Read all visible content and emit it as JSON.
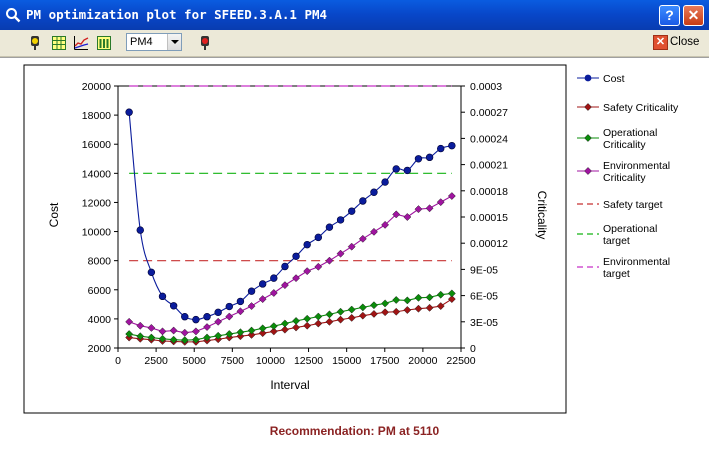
{
  "window": {
    "title": "PM optimization plot for SFEED.3.A.1 PM4",
    "help_label": "?",
    "close_glyph": "✕"
  },
  "toolbar": {
    "icons": [
      "traffic-light-yellow-icon",
      "grid-table-icon",
      "line-chart-icon",
      "bar-table-icon",
      "traffic-light-red-icon"
    ],
    "select_value": "PM4",
    "close_label": "Close"
  },
  "recommendation": "Recommendation: PM at 5110",
  "chart_data": {
    "type": "line",
    "xlabel": "Interval",
    "ylabel": "Cost",
    "y2label": "Criticality",
    "xlim": [
      0,
      22500
    ],
    "ylim": [
      2000,
      20000
    ],
    "y2lim": [
      0,
      0.0003
    ],
    "xticks": [
      "0",
      "2500",
      "5000",
      "7500",
      "10000",
      "12500",
      "15000",
      "17500",
      "20000",
      "22500"
    ],
    "yticks": [
      "2000",
      "4000",
      "6000",
      "8000",
      "10000",
      "12000",
      "14000",
      "16000",
      "18000",
      "20000"
    ],
    "y2ticks": [
      "0",
      "3E-05",
      "6E-05",
      "9E-05",
      "0.00012",
      "0.00015",
      "0.00018",
      "0.00021",
      "0.00024",
      "0.00027",
      "0.0003"
    ],
    "legend_position": "right",
    "x": [
      730,
      1460,
      2190,
      2920,
      3650,
      4380,
      5110,
      5840,
      6570,
      7300,
      8030,
      8760,
      9490,
      10220,
      10950,
      11680,
      12410,
      13140,
      13870,
      14600,
      15330,
      16060,
      16790,
      17520,
      18250,
      18980,
      19710,
      20440,
      21170,
      21900
    ],
    "series": [
      {
        "name": "Cost",
        "axis": "left",
        "color": "#0A1C9C",
        "marker": "circle",
        "values": [
          18200,
          10100,
          7200,
          5550,
          4900,
          4150,
          3950,
          4150,
          4450,
          4850,
          5200,
          5900,
          6400,
          6800,
          7600,
          8300,
          9100,
          9600,
          10300,
          10800,
          11400,
          12100,
          12700,
          13400,
          14300,
          14200,
          15000,
          15100,
          15700,
          15900
        ]
      },
      {
        "name": "Safety Criticality",
        "axis": "right",
        "color": "#A01414",
        "marker": "diamond",
        "values": [
          1.2e-05,
          1.05e-05,
          9.5e-06,
          8e-06,
          7.5e-06,
          7e-06,
          7e-06,
          8.5e-06,
          1e-05,
          1.2e-05,
          1.35e-05,
          1.5e-05,
          1.7e-05,
          1.9e-05,
          2.1e-05,
          2.35e-05,
          2.55e-05,
          2.8e-05,
          3e-05,
          3.25e-05,
          3.45e-05,
          3.7e-05,
          3.9e-05,
          4.1e-05,
          4.15e-05,
          4.35e-05,
          4.5e-05,
          4.6e-05,
          4.8e-05,
          5.6e-05
        ]
      },
      {
        "name": "Operational Criticality",
        "axis": "right",
        "color": "#0A8C0A",
        "marker": "diamond",
        "values": [
          1.6e-05,
          1.35e-05,
          1.2e-05,
          1.05e-05,
          9.5e-06,
          9e-06,
          9.5e-06,
          1.2e-05,
          1.4e-05,
          1.6e-05,
          1.8e-05,
          2e-05,
          2.25e-05,
          2.5e-05,
          2.8e-05,
          3.1e-05,
          3.35e-05,
          3.6e-05,
          3.85e-05,
          4.15e-05,
          4.4e-05,
          4.65e-05,
          4.9e-05,
          5.1e-05,
          5.5e-05,
          5.45e-05,
          5.75e-05,
          5.8e-05,
          6.1e-05,
          6.25e-05
        ]
      },
      {
        "name": "Environmental Criticality",
        "axis": "right",
        "color": "#A014A0",
        "marker": "diamond",
        "values": [
          3e-05,
          2.55e-05,
          2.3e-05,
          1.9e-05,
          2e-05,
          1.75e-05,
          1.9e-05,
          2.4e-05,
          3e-05,
          3.6e-05,
          4.2e-05,
          4.8e-05,
          5.6e-05,
          6.3e-05,
          7.2e-05,
          8e-05,
          8.8e-05,
          9.3e-05,
          0.0001,
          0.000108,
          0.000116,
          0.000125,
          0.000133,
          0.000141,
          0.000153,
          0.00015,
          0.000159,
          0.00016,
          0.000167,
          0.000174
        ]
      }
    ],
    "targets": [
      {
        "name": "Safety target",
        "axis": "left",
        "value": 8000,
        "color": "#C83232"
      },
      {
        "name": "Operational target",
        "axis": "left",
        "value": 14000,
        "color": "#14B414"
      },
      {
        "name": "Environmental target",
        "axis": "left",
        "value": 20000,
        "color": "#C832C8"
      }
    ],
    "legend": [
      {
        "label": "Cost",
        "lines": [
          "Cost"
        ],
        "color": "#0A1C9C",
        "kind": "circle"
      },
      {
        "label": "Safety Criticality",
        "lines": [
          "Safety Criticality"
        ],
        "color": "#A01414",
        "kind": "diamond"
      },
      {
        "label": "Operational Criticality",
        "lines": [
          "Operational",
          "Criticality"
        ],
        "color": "#0A8C0A",
        "kind": "diamond"
      },
      {
        "label": "Environmental Criticality",
        "lines": [
          "Environmental",
          "Criticality"
        ],
        "color": "#A014A0",
        "kind": "diamond"
      },
      {
        "label": "Safety target",
        "lines": [
          "Safety target"
        ],
        "color": "#C83232",
        "kind": "dash"
      },
      {
        "label": "Operational target",
        "lines": [
          "Operational",
          "target"
        ],
        "color": "#14B414",
        "kind": "dash"
      },
      {
        "label": "Environmental target",
        "lines": [
          "Environmental",
          "target"
        ],
        "color": "#C832C8",
        "kind": "dash"
      }
    ]
  }
}
